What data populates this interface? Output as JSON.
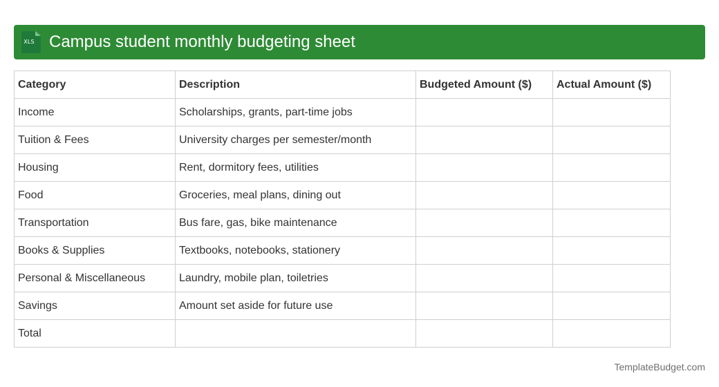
{
  "header": {
    "icon_label": "XLS",
    "icon": "spreadsheet-file-icon",
    "title": "Campus student monthly budgeting sheet",
    "bar_color": "#2e8b35"
  },
  "table": {
    "columns": [
      "Category",
      "Description",
      "Budgeted Amount ($)",
      "Actual Amount ($)"
    ],
    "rows": [
      {
        "category": "Income",
        "description": "Scholarships, grants, part-time jobs",
        "budgeted": "",
        "actual": ""
      },
      {
        "category": "Tuition & Fees",
        "description": "University charges per semester/month",
        "budgeted": "",
        "actual": ""
      },
      {
        "category": "Housing",
        "description": "Rent, dormitory fees, utilities",
        "budgeted": "",
        "actual": ""
      },
      {
        "category": "Food",
        "description": "Groceries, meal plans, dining out",
        "budgeted": "",
        "actual": ""
      },
      {
        "category": "Transportation",
        "description": "Bus fare, gas, bike maintenance",
        "budgeted": "",
        "actual": ""
      },
      {
        "category": "Books & Supplies",
        "description": "Textbooks, notebooks, stationery",
        "budgeted": "",
        "actual": ""
      },
      {
        "category": "Personal & Miscellaneous",
        "description": "Laundry, mobile plan, toiletries",
        "budgeted": "",
        "actual": ""
      },
      {
        "category": "Savings",
        "description": "Amount set aside for future use",
        "budgeted": "",
        "actual": ""
      },
      {
        "category": "Total",
        "description": "",
        "budgeted": "",
        "actual": ""
      }
    ]
  },
  "footer": {
    "brand": "TemplateBudget.com"
  }
}
